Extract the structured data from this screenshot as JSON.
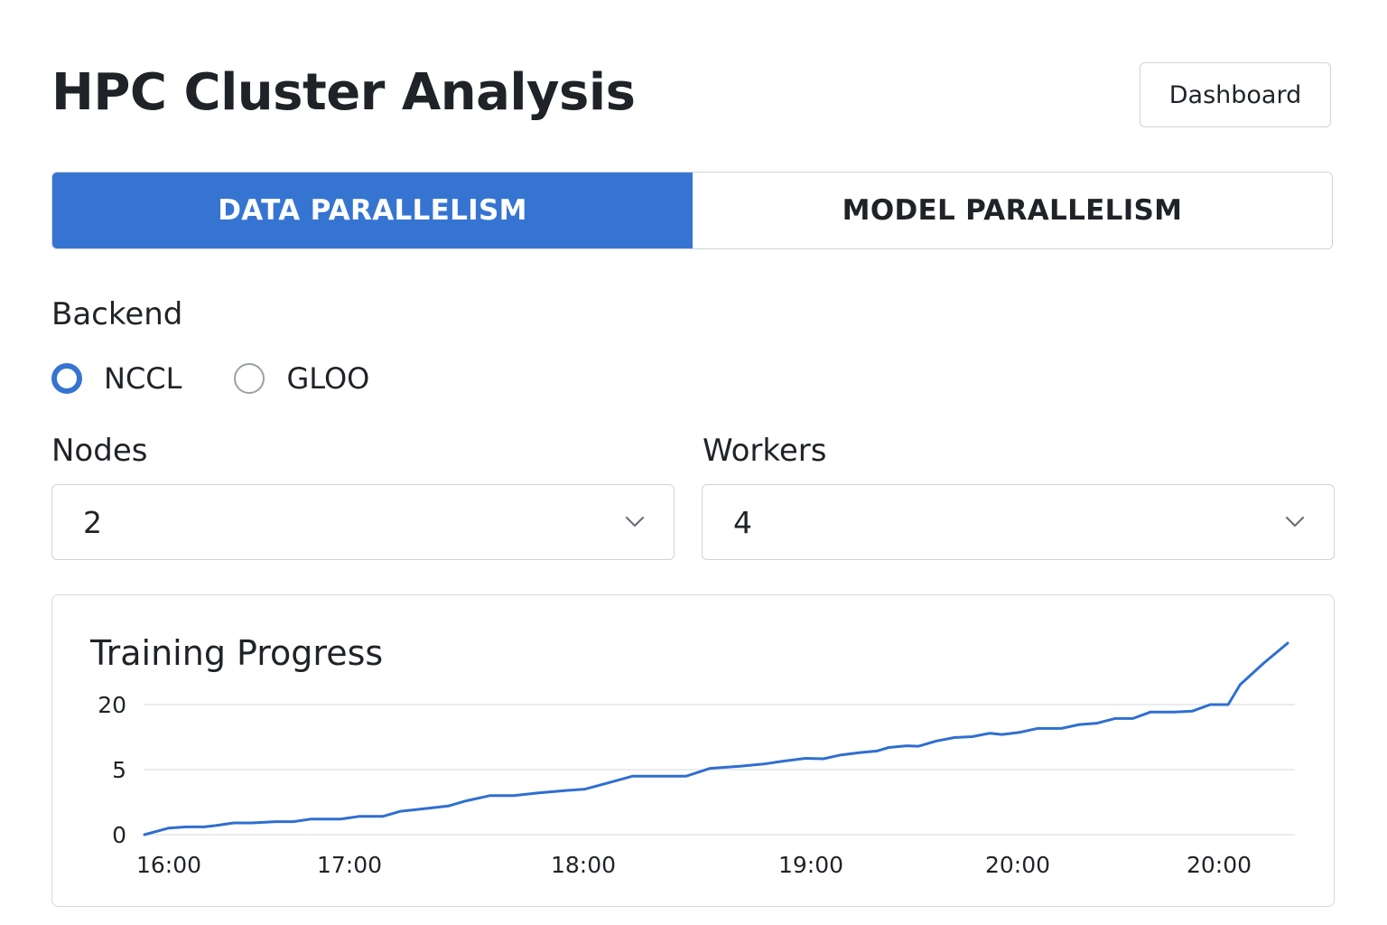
{
  "header": {
    "title": "HPC Cluster Analysis",
    "dashboard_label": "Dashboard"
  },
  "tabs": [
    {
      "label": "DATA PARALLELISM",
      "active": true
    },
    {
      "label": "MODEL PARALLELISM",
      "active": false
    }
  ],
  "backend": {
    "label": "Backend",
    "options": [
      {
        "label": "NCCL",
        "selected": true
      },
      {
        "label": "GLOO",
        "selected": false
      }
    ]
  },
  "nodes": {
    "label": "Nodes",
    "value": "2"
  },
  "workers": {
    "label": "Workers",
    "value": "4"
  },
  "colors": {
    "accent": "#3674d1",
    "line": "#2f6fd0"
  },
  "chart_data": {
    "type": "line",
    "title": "Training Progress",
    "xlabel": "",
    "ylabel": "",
    "x_ticks": [
      "16:00",
      "17:00",
      "18:00",
      "19:00",
      "20:00",
      "20:00"
    ],
    "y_ticks": [
      0,
      5,
      20
    ],
    "grid": true,
    "legend": "none",
    "series": [
      {
        "points": [
          [
            0.0,
            0.0
          ],
          [
            0.2,
            0.5
          ],
          [
            0.35,
            0.6
          ],
          [
            0.5,
            0.6
          ],
          [
            0.6,
            0.7
          ],
          [
            0.75,
            0.9
          ],
          [
            0.9,
            0.9
          ],
          [
            1.1,
            1.0
          ],
          [
            1.25,
            1.0
          ],
          [
            1.4,
            1.2
          ],
          [
            1.65,
            1.2
          ],
          [
            1.8,
            1.4
          ],
          [
            2.0,
            1.4
          ],
          [
            2.15,
            1.8
          ],
          [
            2.35,
            2.0
          ],
          [
            2.55,
            2.2
          ],
          [
            2.7,
            2.6
          ],
          [
            2.9,
            3.0
          ],
          [
            3.1,
            3.0
          ],
          [
            3.3,
            3.2
          ],
          [
            3.55,
            3.4
          ],
          [
            3.7,
            3.5
          ],
          [
            3.9,
            4.0
          ],
          [
            4.1,
            4.5
          ],
          [
            4.3,
            4.5
          ],
          [
            4.55,
            4.5
          ],
          [
            4.75,
            5.3
          ],
          [
            5.0,
            5.8
          ],
          [
            5.2,
            6.3
          ],
          [
            5.35,
            6.9
          ],
          [
            5.55,
            7.6
          ],
          [
            5.7,
            7.5
          ],
          [
            5.85,
            8.4
          ],
          [
            6.0,
            8.9
          ],
          [
            6.15,
            9.3
          ],
          [
            6.25,
            10.1
          ],
          [
            6.4,
            10.5
          ],
          [
            6.5,
            10.4
          ],
          [
            6.65,
            11.6
          ],
          [
            6.8,
            12.4
          ],
          [
            6.95,
            12.6
          ],
          [
            7.1,
            13.4
          ],
          [
            7.2,
            13.1
          ],
          [
            7.35,
            13.6
          ],
          [
            7.5,
            14.5
          ],
          [
            7.7,
            14.5
          ],
          [
            7.85,
            15.4
          ],
          [
            8.0,
            15.7
          ],
          [
            8.15,
            16.8
          ],
          [
            8.3,
            16.8
          ],
          [
            8.45,
            18.3
          ],
          [
            8.65,
            18.3
          ],
          [
            8.8,
            18.5
          ],
          [
            8.95,
            20.0
          ],
          [
            9.1,
            20.0
          ],
          [
            9.2,
            21.1
          ],
          [
            9.4,
            22.3
          ],
          [
            9.6,
            23.4
          ]
        ]
      }
    ]
  }
}
